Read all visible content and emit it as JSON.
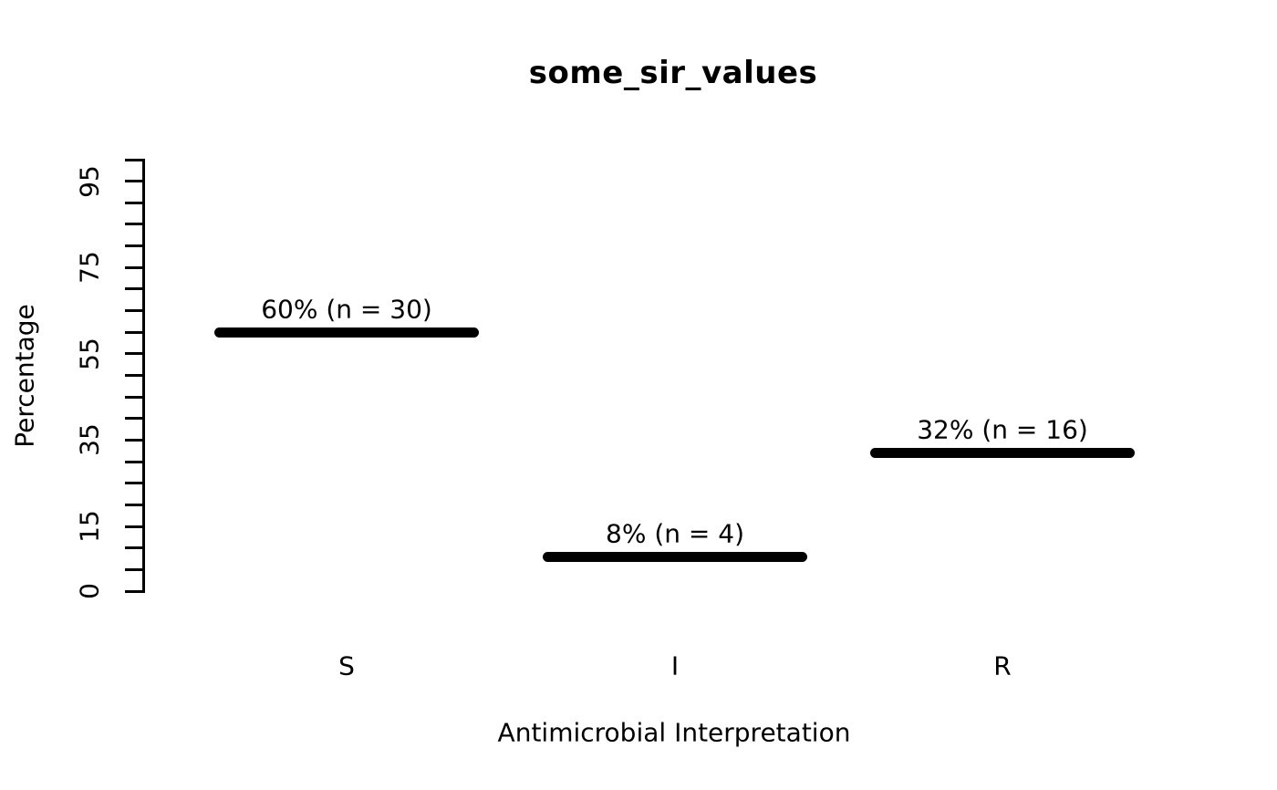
{
  "chart_data": {
    "type": "bar",
    "style": "horizontal-segment-marks",
    "title": "some_sir_values",
    "xlabel": "Antimicrobial Interpretation",
    "ylabel": "Percentage",
    "categories": [
      "S",
      "I",
      "R"
    ],
    "values": [
      60,
      8,
      32
    ],
    "counts": [
      30,
      4,
      16
    ],
    "bar_labels": [
      "60% (n = 30)",
      "8% (n = 4)",
      "32% (n = 16)"
    ],
    "ylim": [
      0,
      100
    ],
    "y_tick_step": 5,
    "y_labeled_ticks": [
      {
        "value": 0,
        "label": "0"
      },
      {
        "value": 15,
        "label": "15"
      },
      {
        "value": 35,
        "label": "35"
      },
      {
        "value": 55,
        "label": "55"
      },
      {
        "value": 75,
        "label": "75"
      },
      {
        "value": 95,
        "label": "95"
      }
    ],
    "grid": false,
    "legend": null,
    "colors": {
      "bar": "#000000",
      "text": "#000000",
      "background": "#ffffff"
    }
  }
}
